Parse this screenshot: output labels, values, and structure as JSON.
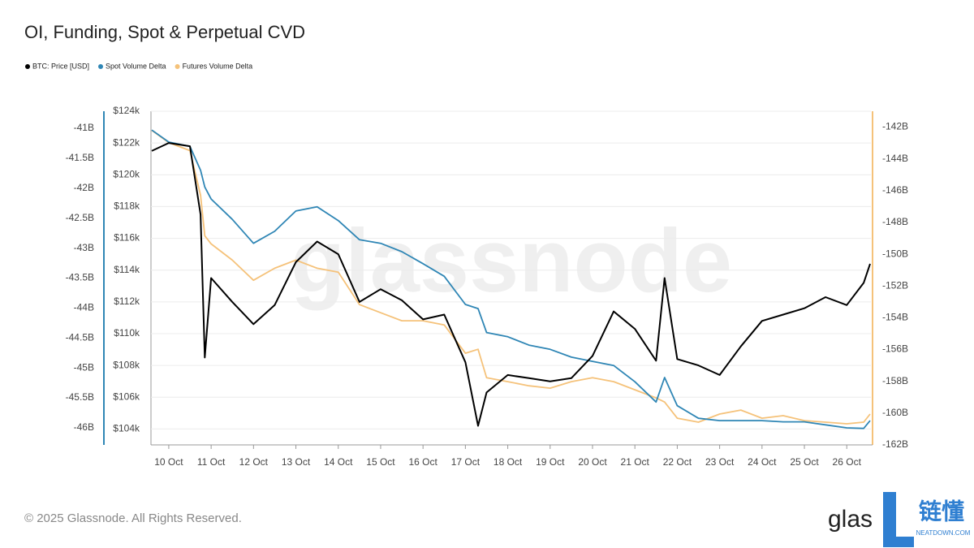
{
  "chart_data": {
    "type": "line",
    "title": "OI, Funding, Spot & Perpetual CVD",
    "watermark": "glassnode",
    "footer": "© 2025 Glassnode. All Rights Reserved.",
    "logo": {
      "text": "glas",
      "badge": "链懂",
      "badge_sub": "NEATDOWN.COM"
    },
    "grid": true,
    "x": [
      9.6,
      10,
      10.5,
      10.75,
      10.85,
      11,
      11.5,
      12,
      12.5,
      13,
      13.5,
      14,
      14.5,
      15,
      15.5,
      16,
      16.5,
      17,
      17.3,
      17.5,
      18,
      18.5,
      19,
      19.5,
      20,
      20.5,
      21,
      21.5,
      21.7,
      22,
      22.5,
      23,
      23.5,
      24,
      24.5,
      25,
      25.5,
      26,
      26.4,
      26.55
    ],
    "xlim": [
      9.58,
      26.57
    ],
    "xticks": [
      {
        "value": 10,
        "label": "10 Oct"
      },
      {
        "value": 11,
        "label": "11 Oct"
      },
      {
        "value": 12,
        "label": "12 Oct"
      },
      {
        "value": 13,
        "label": "13 Oct"
      },
      {
        "value": 14,
        "label": "14 Oct"
      },
      {
        "value": 15,
        "label": "15 Oct"
      },
      {
        "value": 16,
        "label": "16 Oct"
      },
      {
        "value": 17,
        "label": "17 Oct"
      },
      {
        "value": 18,
        "label": "18 Oct"
      },
      {
        "value": 19,
        "label": "19 Oct"
      },
      {
        "value": 20,
        "label": "20 Oct"
      },
      {
        "value": 21,
        "label": "21 Oct"
      },
      {
        "value": 22,
        "label": "22 Oct"
      },
      {
        "value": 23,
        "label": "23 Oct"
      },
      {
        "value": 24,
        "label": "24 Oct"
      },
      {
        "value": 25,
        "label": "25 Oct"
      },
      {
        "value": 26,
        "label": "26 Oct"
      }
    ],
    "ylim": [
      103,
      124
    ],
    "yticks": [
      {
        "value": 104,
        "label": "$104k"
      },
      {
        "value": 106,
        "label": "$106k"
      },
      {
        "value": 108,
        "label": "$108k"
      },
      {
        "value": 110,
        "label": "$110k"
      },
      {
        "value": 112,
        "label": "$112k"
      },
      {
        "value": 114,
        "label": "$114k"
      },
      {
        "value": 116,
        "label": "$116k"
      },
      {
        "value": 118,
        "label": "$118k"
      },
      {
        "value": 120,
        "label": "$120k"
      },
      {
        "value": 122,
        "label": "$122k"
      },
      {
        "value": 124,
        "label": "$124k"
      }
    ],
    "y2lim": [
      -162,
      -141
    ],
    "y2ticks": [
      {
        "value": -142,
        "label": "-142B"
      },
      {
        "value": -144,
        "label": "-144B"
      },
      {
        "value": -146,
        "label": "-146B"
      },
      {
        "value": -148,
        "label": "-148B"
      },
      {
        "value": -150,
        "label": "-150B"
      },
      {
        "value": -152,
        "label": "-152B"
      },
      {
        "value": -154,
        "label": "-154B"
      },
      {
        "value": -156,
        "label": "-156B"
      },
      {
        "value": -158,
        "label": "-158B"
      },
      {
        "value": -160,
        "label": "-160B"
      },
      {
        "value": -162,
        "label": "-162B"
      }
    ],
    "y3lim": [
      -46.285,
      -40.715
    ],
    "y3ticks": [
      {
        "value": -41,
        "label": "-41B"
      },
      {
        "value": -41.5,
        "label": "-41.5B"
      },
      {
        "value": -42,
        "label": "-42B"
      },
      {
        "value": -42.5,
        "label": "-42.5B"
      },
      {
        "value": -43,
        "label": "-43B"
      },
      {
        "value": -43.5,
        "label": "-43.5B"
      },
      {
        "value": -44,
        "label": "-44B"
      },
      {
        "value": -44.5,
        "label": "-44.5B"
      },
      {
        "value": -45,
        "label": "-45B"
      },
      {
        "value": -45.5,
        "label": "-45.5B"
      },
      {
        "value": -46,
        "label": "-46B"
      }
    ],
    "series": [
      {
        "name": "BTC: Price [USD]",
        "color": "#000000",
        "axis": "y",
        "values": [
          121.5,
          122.0,
          121.8,
          117.5,
          108.5,
          113.5,
          112.0,
          110.6,
          111.8,
          114.5,
          115.8,
          115.0,
          112.0,
          112.8,
          112.1,
          110.9,
          111.2,
          108.2,
          104.2,
          106.3,
          107.4,
          107.2,
          107.0,
          107.2,
          108.6,
          111.4,
          110.3,
          108.3,
          113.5,
          108.4,
          108.0,
          107.4,
          109.2,
          110.8,
          111.2,
          111.6,
          112.3,
          111.8,
          113.2,
          114.4
        ]
      },
      {
        "name": "Spot Volume Delta",
        "color": "#2f86b5",
        "axis": "y3",
        "values": [
          -41.03,
          -41.23,
          -41.3,
          -41.7,
          -41.98,
          -42.18,
          -42.52,
          -42.92,
          -42.72,
          -42.38,
          -42.31,
          -42.54,
          -42.86,
          -42.92,
          -43.06,
          -43.26,
          -43.47,
          -43.94,
          -44.01,
          -44.41,
          -44.48,
          -44.62,
          -44.69,
          -44.82,
          -44.89,
          -44.96,
          -45.23,
          -45.57,
          -45.16,
          -45.63,
          -45.84,
          -45.88,
          -45.88,
          -45.88,
          -45.9,
          -45.9,
          -45.95,
          -46.0,
          -46.01,
          -45.88
        ]
      },
      {
        "name": "Futures Volume Delta",
        "color": "#f5c27a",
        "axis": "y2",
        "values": [
          -142.2,
          -142.97,
          -143.48,
          -146.29,
          -148.84,
          -149.35,
          -150.37,
          -151.64,
          -150.88,
          -150.37,
          -150.88,
          -151.13,
          -153.17,
          -153.68,
          -154.19,
          -154.19,
          -154.45,
          -156.23,
          -155.98,
          -157.77,
          -158.02,
          -158.28,
          -158.43,
          -158.02,
          -157.77,
          -158.02,
          -158.53,
          -159.04,
          -159.3,
          -160.32,
          -160.57,
          -160.06,
          -159.81,
          -160.32,
          -160.16,
          -160.47,
          -160.57,
          -160.67,
          -160.57,
          -160.06
        ]
      }
    ]
  }
}
